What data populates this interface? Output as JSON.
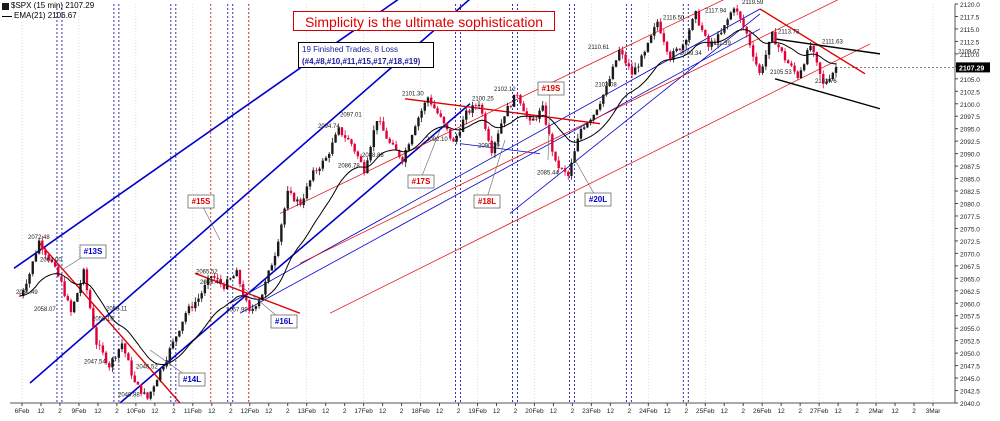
{
  "header": {
    "symbol_line": "$SPX (15 min) 2107.29",
    "ema_line": "EMA(21) 2106.67"
  },
  "banner": {
    "text": "Simplicity is the ultimate sophistication"
  },
  "trades_box": {
    "line1": "19 Finished Trades, 8 Loss",
    "line2": "(#4,#8,#10,#11,#15,#17,#18,#19)"
  },
  "colors": {
    "candle": "#1a1a1a",
    "bear_candle": "#e0003a",
    "ema": "#000000",
    "channel_blue": "#0000cc",
    "channel_red": "#e00000",
    "vline_blue": "#0000aa",
    "vline_red": "#cc0000",
    "last_price_bg": "#000000",
    "signal_blue": "#0000cc",
    "signal_red": "#e00000"
  },
  "chart_data": {
    "type": "candlestick",
    "interval": "15 min",
    "title": "$SPX (15 min)",
    "ylim": [
      2040,
      2120
    ],
    "y_ticks": [
      2040.0,
      2042.5,
      2045.0,
      2047.5,
      2050.0,
      2052.5,
      2055.0,
      2057.5,
      2060.0,
      2062.5,
      2065.0,
      2067.5,
      2070.0,
      2072.5,
      2075.0,
      2077.5,
      2080.0,
      2082.5,
      2085.0,
      2087.5,
      2090.0,
      2092.5,
      2095.0,
      2097.5,
      2100.0,
      2102.5,
      2105.0,
      2107.5,
      2110.0,
      2112.5,
      2115.0,
      2117.5,
      2120.0
    ],
    "y_tick_labels": [
      "2040.0",
      "2042.5",
      "2045.0",
      "2047.5",
      "2050.0",
      "2052.5",
      "2055.0",
      "2057.5",
      "2060.0",
      "2062.5",
      "2065.0",
      "2067.5",
      "2070.0",
      "2072.5",
      "2075.0",
      "2077.5",
      "2080.0",
      "2082.5",
      "2085.0",
      "2087.5",
      "2090.0",
      "2092.5",
      "2095.0",
      "2097.5",
      "2100.0",
      "2102.5",
      "2105.0",
      "2107.5",
      "2110.0",
      "2112.5",
      "2115.0",
      "2117.5",
      "2120.0"
    ],
    "x_tick_labels": [
      "6Feb",
      "12",
      "2",
      "9Feb",
      "12",
      "2",
      "10Feb",
      "12",
      "2",
      "11Feb",
      "12",
      "2",
      "12Feb",
      "12",
      "2",
      "13Feb",
      "12",
      "2",
      "17Feb",
      "12",
      "2",
      "18Feb",
      "12",
      "2",
      "19Feb",
      "12",
      "2",
      "20Feb",
      "12",
      "2",
      "23Feb",
      "12",
      "2",
      "24Feb",
      "12",
      "2",
      "25Feb",
      "12",
      "2",
      "26Feb",
      "12",
      "2",
      "27Feb",
      "12",
      "2",
      "2Mar",
      "12",
      "2",
      "3Mar"
    ],
    "last_price": 2107.29,
    "ema_last": 2106.67,
    "ema_period": 21,
    "price_path": [
      [
        0,
        2061.49
      ],
      [
        3,
        2066
      ],
      [
        6,
        2072.48
      ],
      [
        10,
        2068
      ],
      [
        13,
        2064
      ],
      [
        16,
        2058.07
      ],
      [
        20,
        2066.16
      ],
      [
        24,
        2052
      ],
      [
        28,
        2047.54
      ],
      [
        32,
        2052
      ],
      [
        36,
        2044
      ],
      [
        40,
        2040.88
      ],
      [
        44,
        2046.52
      ],
      [
        48,
        2052
      ],
      [
        52,
        2058.11
      ],
      [
        56,
        2061
      ],
      [
        60,
        2065.52
      ],
      [
        64,
        2063.48
      ],
      [
        68,
        2066
      ],
      [
        72,
        2057.99
      ],
      [
        76,
        2062
      ],
      [
        80,
        2070
      ],
      [
        84,
        2082
      ],
      [
        88,
        2080
      ],
      [
        92,
        2086
      ],
      [
        96,
        2089
      ],
      [
        100,
        2094.74
      ],
      [
        104,
        2092
      ],
      [
        108,
        2086.78
      ],
      [
        112,
        2097.01
      ],
      [
        116,
        2092
      ],
      [
        120,
        2088.88
      ],
      [
        124,
        2096
      ],
      [
        128,
        2101.3
      ],
      [
        132,
        2097
      ],
      [
        136,
        2092.1
      ],
      [
        140,
        2098
      ],
      [
        144,
        2100.25
      ],
      [
        148,
        2090.79
      ],
      [
        152,
        2098
      ],
      [
        156,
        2102.12
      ],
      [
        160,
        2096
      ],
      [
        164,
        2099
      ],
      [
        168,
        2088
      ],
      [
        172,
        2085.44
      ],
      [
        176,
        2095
      ],
      [
        180,
        2098
      ],
      [
        184,
        2103.08
      ],
      [
        188,
        2110.61
      ],
      [
        192,
        2106
      ],
      [
        196,
        2110
      ],
      [
        200,
        2116.5
      ],
      [
        204,
        2109.34
      ],
      [
        208,
        2112
      ],
      [
        212,
        2117.94
      ],
      [
        216,
        2111.39
      ],
      [
        220,
        2114
      ],
      [
        224,
        2119.59
      ],
      [
        228,
        2114
      ],
      [
        232,
        2106
      ],
      [
        236,
        2113.73
      ],
      [
        240,
        2109
      ],
      [
        244,
        2105.53
      ],
      [
        248,
        2111.63
      ],
      [
        252,
        2103.76
      ],
      [
        256,
        2107.29
      ]
    ],
    "annotations": {
      "price_labels": [
        {
          "text": "2072.48",
          "value": 2072.48
        },
        {
          "text": "2061.49",
          "value": 2061.49
        },
        {
          "text": "2068.00",
          "value": 2068.0
        },
        {
          "text": "2058.07",
          "value": 2058.07
        },
        {
          "text": "2056.16",
          "value": 2056.16
        },
        {
          "text": "2047.54",
          "value": 2047.54
        },
        {
          "text": "2040.88",
          "value": 2040.88
        },
        {
          "text": "2046.52",
          "value": 2046.52
        },
        {
          "text": "2058.11",
          "value": 2058.11
        },
        {
          "text": "2065.52",
          "value": 2065.52
        },
        {
          "text": "2063.48",
          "value": 2063.48
        },
        {
          "text": "2057.99",
          "value": 2057.99
        },
        {
          "text": "2094.74",
          "value": 2094.74
        },
        {
          "text": "2097.01",
          "value": 2097.01
        },
        {
          "text": "2086.78",
          "value": 2086.78
        },
        {
          "text": "2088.88",
          "value": 2088.88
        },
        {
          "text": "2101.30",
          "value": 2101.3
        },
        {
          "text": "2092.10",
          "value": 2092.1
        },
        {
          "text": "2100.25",
          "value": 2100.25
        },
        {
          "text": "2102.12",
          "value": 2102.12
        },
        {
          "text": "2090.79",
          "value": 2090.79
        },
        {
          "text": "2085.44",
          "value": 2085.44
        },
        {
          "text": "2103.08",
          "value": 2103.08
        },
        {
          "text": "2110.61",
          "value": 2110.61
        },
        {
          "text": "2116.50",
          "value": 2116.5
        },
        {
          "text": "2117.94",
          "value": 2117.94
        },
        {
          "text": "2109.34",
          "value": 2109.34
        },
        {
          "text": "2111.39",
          "value": 2111.39
        },
        {
          "text": "2119.59",
          "value": 2119.59
        },
        {
          "text": "2113.73",
          "value": 2113.73
        },
        {
          "text": "2111.63",
          "value": 2111.63
        },
        {
          "text": "2105.53",
          "value": 2105.53
        },
        {
          "text": "2103.76",
          "value": 2103.76
        },
        {
          "text": "2109.67",
          "value": 2109.67
        }
      ],
      "trade_signals": [
        {
          "text": "#13S",
          "color": "blue"
        },
        {
          "text": "#14L",
          "color": "blue"
        },
        {
          "text": "#15S",
          "color": "red"
        },
        {
          "text": "#16L",
          "color": "blue"
        },
        {
          "text": "#17S",
          "color": "red"
        },
        {
          "text": "#18L",
          "color": "red"
        },
        {
          "text": "#19S",
          "color": "red"
        },
        {
          "text": "#20L",
          "color": "blue"
        }
      ]
    }
  }
}
